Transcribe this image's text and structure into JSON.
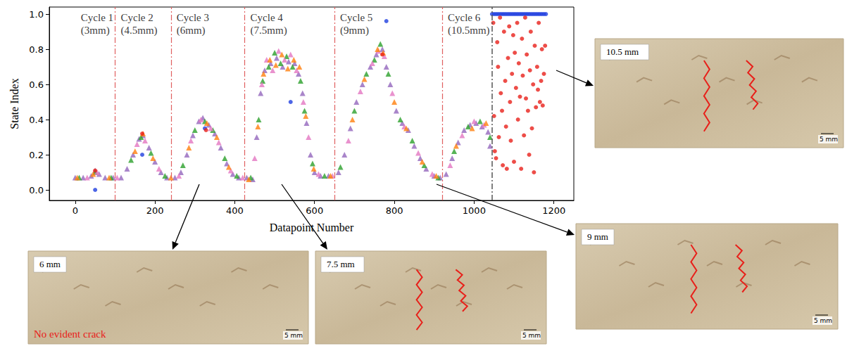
{
  "chart_data": {
    "type": "scatter",
    "x_label": "Datapoint Number",
    "y_label": "State Index",
    "xlim": [
      -65,
      1250
    ],
    "xticks": [
      0,
      200,
      400,
      600,
      800,
      1000,
      1200
    ],
    "ylim": [
      -0.06,
      1.04
    ],
    "yticks": [
      {
        "value": 0,
        "label": "0.0"
      },
      {
        "value": 0.2,
        "label": "0.2"
      },
      {
        "value": 0.4,
        "label": "0.4"
      },
      {
        "value": 0.6,
        "label": "0.6"
      },
      {
        "value": 0.8,
        "label": "0.8"
      },
      {
        "value": 1,
        "label": "1.0"
      }
    ],
    "grid": false,
    "series": [
      {
        "color": "#9467bd",
        "marker": "triangle",
        "values": [
          [
            0,
            0.07
          ],
          [
            20,
            0.07
          ],
          [
            40,
            0.08
          ],
          [
            50,
            0.11
          ],
          [
            60,
            0.09
          ],
          [
            75,
            0.07
          ],
          [
            95,
            0.07
          ],
          [
            115,
            0.07
          ],
          [
            130,
            0.12
          ],
          [
            145,
            0.2
          ],
          [
            160,
            0.29
          ],
          [
            170,
            0.31
          ],
          [
            185,
            0.24
          ],
          [
            200,
            0.16
          ],
          [
            215,
            0.1
          ],
          [
            230,
            0.07
          ],
          [
            250,
            0.07
          ],
          [
            265,
            0.1
          ],
          [
            280,
            0.2
          ],
          [
            295,
            0.31
          ],
          [
            310,
            0.39
          ],
          [
            320,
            0.41
          ],
          [
            335,
            0.37
          ],
          [
            350,
            0.32
          ],
          [
            365,
            0.24
          ],
          [
            380,
            0.15
          ],
          [
            395,
            0.09
          ],
          [
            410,
            0.07
          ],
          [
            430,
            0.07
          ],
          [
            445,
            0.06
          ],
          [
            455,
            0.3
          ],
          [
            465,
            0.55
          ],
          [
            475,
            0.68
          ],
          [
            490,
            0.72
          ],
          [
            505,
            0.75
          ],
          [
            520,
            0.7
          ],
          [
            535,
            0.73
          ],
          [
            550,
            0.72
          ],
          [
            560,
            0.66
          ],
          [
            570,
            0.55
          ],
          [
            580,
            0.38
          ],
          [
            590,
            0.2
          ],
          [
            600,
            0.1
          ],
          [
            615,
            0.08
          ],
          [
            635,
            0.08
          ],
          [
            660,
            0.1
          ],
          [
            675,
            0.2
          ],
          [
            690,
            0.35
          ],
          [
            705,
            0.5
          ],
          [
            720,
            0.6
          ],
          [
            740,
            0.7
          ],
          [
            755,
            0.77
          ],
          [
            770,
            0.8
          ],
          [
            780,
            0.7
          ],
          [
            790,
            0.6
          ],
          [
            805,
            0.45
          ],
          [
            820,
            0.38
          ],
          [
            835,
            0.34
          ],
          [
            850,
            0.25
          ],
          [
            865,
            0.18
          ],
          [
            880,
            0.12
          ],
          [
            900,
            0.08
          ],
          [
            915,
            0.07
          ],
          [
            930,
            0.09
          ],
          [
            945,
            0.18
          ],
          [
            960,
            0.27
          ],
          [
            975,
            0.34
          ],
          [
            990,
            0.37
          ],
          [
            1005,
            0.38
          ],
          [
            1020,
            0.36
          ],
          [
            1035,
            0.33
          ],
          [
            1040,
            0.25
          ]
        ]
      },
      {
        "color": "#2ca02c",
        "marker": "triangle",
        "values": [
          [
            10,
            0.07
          ],
          [
            50,
            0.1
          ],
          [
            90,
            0.07
          ],
          [
            140,
            0.17
          ],
          [
            165,
            0.3
          ],
          [
            190,
            0.21
          ],
          [
            225,
            0.08
          ],
          [
            270,
            0.14
          ],
          [
            300,
            0.34
          ],
          [
            325,
            0.39
          ],
          [
            345,
            0.34
          ],
          [
            375,
            0.18
          ],
          [
            405,
            0.08
          ],
          [
            440,
            0.07
          ],
          [
            460,
            0.4
          ],
          [
            470,
            0.62
          ],
          [
            485,
            0.7
          ],
          [
            500,
            0.78
          ],
          [
            515,
            0.72
          ],
          [
            530,
            0.76
          ],
          [
            545,
            0.7
          ],
          [
            565,
            0.62
          ],
          [
            575,
            0.45
          ],
          [
            595,
            0.15
          ],
          [
            625,
            0.08
          ],
          [
            665,
            0.13
          ],
          [
            700,
            0.45
          ],
          [
            730,
            0.66
          ],
          [
            750,
            0.74
          ],
          [
            765,
            0.83
          ],
          [
            785,
            0.66
          ],
          [
            815,
            0.4
          ],
          [
            845,
            0.28
          ],
          [
            875,
            0.14
          ],
          [
            910,
            0.07
          ],
          [
            950,
            0.22
          ],
          [
            985,
            0.36
          ],
          [
            1015,
            0.39
          ],
          [
            1040,
            0.3
          ]
        ]
      },
      {
        "color": "#e377c2",
        "marker": "triangle",
        "values": [
          [
            30,
            0.07
          ],
          [
            55,
            0.1
          ],
          [
            105,
            0.07
          ],
          [
            155,
            0.26
          ],
          [
            175,
            0.28
          ],
          [
            210,
            0.12
          ],
          [
            260,
            0.08
          ],
          [
            290,
            0.28
          ],
          [
            315,
            0.4
          ],
          [
            340,
            0.35
          ],
          [
            360,
            0.27
          ],
          [
            390,
            0.11
          ],
          [
            420,
            0.07
          ],
          [
            450,
            0.18
          ],
          [
            468,
            0.6
          ],
          [
            480,
            0.74
          ],
          [
            495,
            0.68
          ],
          [
            510,
            0.79
          ],
          [
            525,
            0.74
          ],
          [
            540,
            0.77
          ],
          [
            555,
            0.68
          ],
          [
            572,
            0.5
          ],
          [
            585,
            0.3
          ],
          [
            610,
            0.09
          ],
          [
            645,
            0.08
          ],
          [
            685,
            0.28
          ],
          [
            715,
            0.56
          ],
          [
            745,
            0.72
          ],
          [
            760,
            0.79
          ],
          [
            775,
            0.76
          ],
          [
            795,
            0.55
          ],
          [
            825,
            0.36
          ],
          [
            860,
            0.21
          ],
          [
            895,
            0.09
          ],
          [
            940,
            0.14
          ],
          [
            970,
            0.31
          ],
          [
            1000,
            0.39
          ],
          [
            1025,
            0.37
          ]
        ]
      },
      {
        "color": "#ff7f0e",
        "marker": "triangle",
        "values": [
          [
            5,
            0.07
          ],
          [
            45,
            0.09
          ],
          [
            85,
            0.07
          ],
          [
            150,
            0.22
          ],
          [
            170,
            0.32
          ],
          [
            195,
            0.18
          ],
          [
            240,
            0.07
          ],
          [
            285,
            0.24
          ],
          [
            330,
            0.38
          ],
          [
            355,
            0.3
          ],
          [
            385,
            0.13
          ],
          [
            435,
            0.06
          ],
          [
            458,
            0.36
          ],
          [
            472,
            0.66
          ],
          [
            488,
            0.74
          ],
          [
            503,
            0.71
          ],
          [
            518,
            0.77
          ],
          [
            533,
            0.69
          ],
          [
            548,
            0.74
          ],
          [
            562,
            0.7
          ],
          [
            578,
            0.42
          ],
          [
            598,
            0.12
          ],
          [
            640,
            0.08
          ],
          [
            695,
            0.4
          ],
          [
            725,
            0.63
          ],
          [
            758,
            0.8
          ],
          [
            772,
            0.78
          ],
          [
            800,
            0.5
          ],
          [
            830,
            0.35
          ],
          [
            870,
            0.16
          ],
          [
            905,
            0.08
          ],
          [
            955,
            0.25
          ],
          [
            995,
            0.35
          ],
          [
            1030,
            0.38
          ]
        ]
      },
      {
        "color": "#1f3fe0",
        "marker": "circle",
        "values": [
          [
            50,
            0.0
          ],
          [
            168,
            0.2
          ],
          [
            325,
            0.35
          ],
          [
            540,
            0.5
          ],
          [
            780,
            0.96
          ],
          [
            1045,
            1
          ],
          [
            1050,
            1
          ],
          [
            1055,
            1
          ],
          [
            1060,
            1
          ],
          [
            1065,
            1
          ],
          [
            1070,
            1
          ],
          [
            1075,
            1
          ],
          [
            1080,
            1
          ],
          [
            1085,
            1
          ],
          [
            1090,
            1
          ],
          [
            1095,
            1
          ],
          [
            1100,
            1
          ],
          [
            1105,
            1
          ],
          [
            1110,
            1
          ],
          [
            1115,
            1
          ],
          [
            1120,
            1
          ],
          [
            1125,
            1
          ],
          [
            1130,
            1
          ],
          [
            1135,
            1
          ],
          [
            1140,
            1
          ],
          [
            1145,
            1
          ],
          [
            1150,
            1
          ],
          [
            1155,
            1
          ],
          [
            1160,
            1
          ],
          [
            1165,
            1
          ],
          [
            1170,
            1
          ],
          [
            1175,
            1
          ],
          [
            1180,
            1
          ]
        ]
      },
      {
        "color": "#e8201a",
        "marker": "circle",
        "values": [
          [
            50,
            0.11
          ],
          [
            168,
            0.32
          ],
          [
            328,
            0.34
          ],
          [
            770,
            0.77
          ],
          [
            1048,
            0.95
          ],
          [
            1050,
            0.42
          ],
          [
            1052,
            0.22
          ],
          [
            1055,
            0.18
          ],
          [
            1058,
            0.84
          ],
          [
            1060,
            0.7
          ],
          [
            1062,
            0.3
          ],
          [
            1065,
            0.98
          ],
          [
            1067,
            0.55
          ],
          [
            1070,
            0.45
          ],
          [
            1072,
            0.14
          ],
          [
            1075,
            0.9
          ],
          [
            1078,
            0.62
          ],
          [
            1080,
            0.36
          ],
          [
            1082,
            0.12
          ],
          [
            1085,
            0.75
          ],
          [
            1088,
            0.93
          ],
          [
            1090,
            0.5
          ],
          [
            1092,
            0.28
          ],
          [
            1095,
            0.66
          ],
          [
            1098,
            0.88
          ],
          [
            1100,
            0.16
          ],
          [
            1102,
            0.78
          ],
          [
            1105,
            0.58
          ],
          [
            1108,
            0.95
          ],
          [
            1110,
            0.4
          ],
          [
            1112,
            0.72
          ],
          [
            1115,
            0.53
          ],
          [
            1118,
            0.12
          ],
          [
            1120,
            0.86
          ],
          [
            1122,
            0.65
          ],
          [
            1125,
            0.31
          ],
          [
            1128,
            0.98
          ],
          [
            1130,
            0.52
          ],
          [
            1132,
            0.77
          ],
          [
            1135,
            0.45
          ],
          [
            1138,
            0.2
          ],
          [
            1140,
            0.68
          ],
          [
            1142,
            0.9
          ],
          [
            1145,
            0.35
          ],
          [
            1148,
            0.6
          ],
          [
            1150,
            0.1
          ],
          [
            1152,
            0.82
          ],
          [
            1155,
            0.47
          ],
          [
            1158,
            0.7
          ],
          [
            1160,
            0.57
          ],
          [
            1162,
            0.95
          ],
          [
            1165,
            0.5
          ],
          [
            1168,
            0.62
          ],
          [
            1170,
            0.8
          ],
          [
            1172,
            0.48
          ],
          [
            1175,
            0.66
          ],
          [
            1178,
            0.82
          ]
        ]
      }
    ],
    "cycles": [
      {
        "label": "Cycle 1 (3mm)",
        "start": 0
      },
      {
        "label": "Cycle 2 (4.5mm)",
        "start": 100
      },
      {
        "label": "Cycle 3 (6mm)",
        "start": 240
      },
      {
        "label": "Cycle 4 (7.5mm)",
        "start": 425
      },
      {
        "label": "Cycle 5 (9mm)",
        "start": 650
      },
      {
        "label": "Cycle 6 (10.5mm)",
        "start": 920
      }
    ],
    "boundaries": {
      "color": "#e06060",
      "line_style": "dashdot"
    },
    "threshold": {
      "x": 1045,
      "color": "#555555",
      "line_style": "dashdot"
    }
  },
  "photos": [
    {
      "label": "6 mm",
      "scale": "5 mm",
      "cracks": 0,
      "note": "No evident crack"
    },
    {
      "label": "7.5 mm",
      "scale": "5 mm",
      "cracks": 2
    },
    {
      "label": "9 mm",
      "scale": "5 mm",
      "cracks": 2
    },
    {
      "label": "10.5 mm",
      "scale": "5 mm",
      "cracks": 2
    }
  ]
}
